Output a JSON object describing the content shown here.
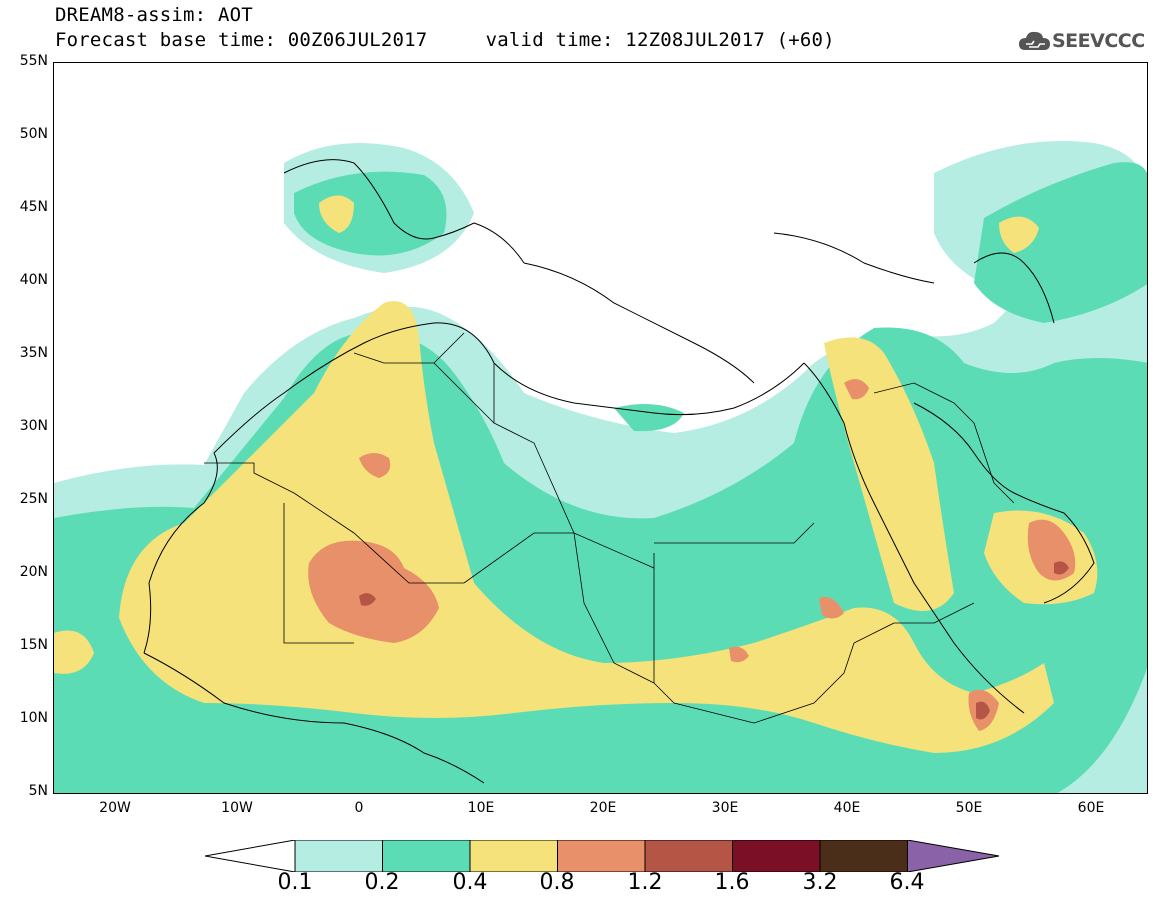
{
  "title": {
    "line1": "DREAM8-assim: AOT",
    "line2": "Forecast base time: 00Z06JUL2017     valid time: 12Z08JUL2017 (+60)"
  },
  "logo": {
    "text": "SEEVCCC",
    "icon": "cloud-icon"
  },
  "map": {
    "lat_labels": [
      "55N",
      "50N",
      "45N",
      "40N",
      "35N",
      "30N",
      "25N",
      "20N",
      "15N",
      "10N",
      "5N"
    ],
    "lon_labels": [
      "20W",
      "10W",
      "0",
      "10E",
      "20E",
      "30E",
      "40E",
      "50E",
      "60E"
    ],
    "extent": {
      "lon": [
        -25,
        65
      ],
      "lat": [
        5,
        55
      ]
    },
    "field": "AOT",
    "features": [
      "coastlines",
      "country-borders"
    ]
  },
  "colorbar": {
    "labels": [
      "0.1",
      "0.2",
      "0.4",
      "0.8",
      "1.2",
      "1.6",
      "3.2",
      "6.4"
    ],
    "colors": [
      "#ffffff",
      "#b5ede3",
      "#5cdcb5",
      "#f5e27a",
      "#e8906a",
      "#b55546",
      "#7b0f26",
      "#4a2e1a",
      "#8a62a8"
    ]
  }
}
